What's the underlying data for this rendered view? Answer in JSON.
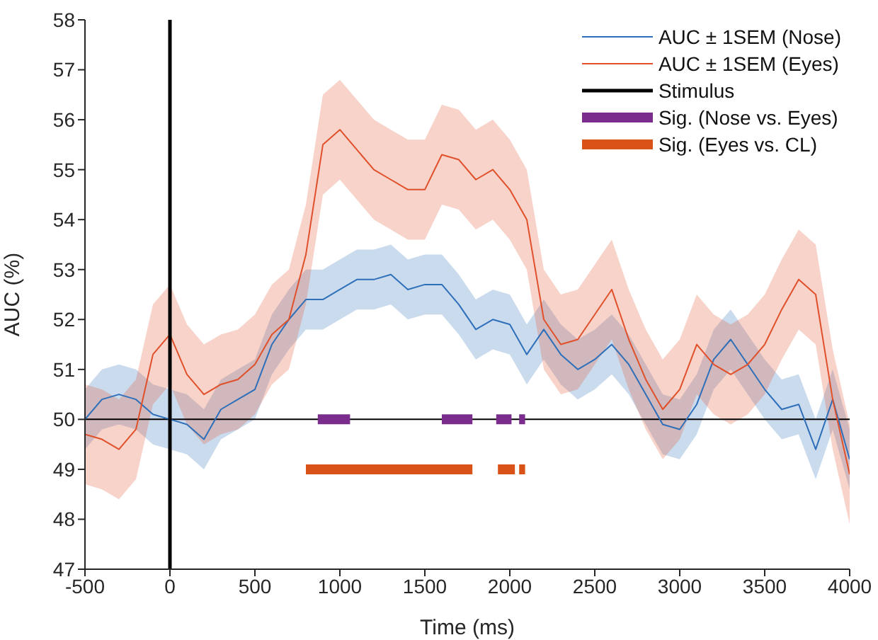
{
  "chart_data": {
    "type": "line",
    "xlabel": "Time (ms)",
    "ylabel": "AUC (%)",
    "xlim": [
      -500,
      4000
    ],
    "xticks": [
      -500,
      0,
      500,
      1000,
      1500,
      2000,
      2500,
      3000,
      3500,
      4000
    ],
    "ylim": [
      47,
      58
    ],
    "yticks": [
      47,
      48,
      49,
      50,
      51,
      52,
      53,
      54,
      55,
      56,
      57,
      58
    ],
    "grid": false,
    "legend": "top right",
    "x": [
      -500,
      -400,
      -300,
      -200,
      -100,
      0,
      100,
      200,
      300,
      400,
      500,
      600,
      700,
      800,
      900,
      1000,
      1100,
      1200,
      1300,
      1400,
      1500,
      1600,
      1700,
      1800,
      1900,
      2000,
      2100,
      2200,
      2300,
      2400,
      2500,
      2600,
      2700,
      2800,
      2900,
      3000,
      3100,
      3200,
      3300,
      3400,
      3500,
      3600,
      3700,
      3800,
      3900,
      4000
    ],
    "ref_lines": [
      {
        "axis": "y",
        "value": 50,
        "color": "#000000"
      }
    ],
    "series": [
      {
        "name": "AUC ± 1SEM (Nose)",
        "color": "#2e6fba",
        "values": [
          50.0,
          50.4,
          50.5,
          50.4,
          50.1,
          50.0,
          49.9,
          49.6,
          50.2,
          50.4,
          50.6,
          51.5,
          52.0,
          52.4,
          52.4,
          52.6,
          52.8,
          52.8,
          52.9,
          52.6,
          52.7,
          52.7,
          52.3,
          51.8,
          52.0,
          51.9,
          51.3,
          51.8,
          51.3,
          51.0,
          51.2,
          51.5,
          51.1,
          50.5,
          49.9,
          49.8,
          50.3,
          51.2,
          51.6,
          51.1,
          50.6,
          50.2,
          50.3,
          49.4,
          50.4,
          49.2
        ],
        "lower": [
          49.4,
          49.8,
          49.9,
          49.8,
          49.5,
          49.4,
          49.3,
          49.0,
          49.6,
          49.8,
          50.0,
          50.9,
          51.4,
          51.8,
          51.8,
          52.0,
          52.2,
          52.2,
          52.3,
          52.0,
          52.1,
          52.1,
          51.7,
          51.2,
          51.4,
          51.3,
          50.7,
          51.2,
          50.7,
          50.4,
          50.6,
          50.9,
          50.5,
          49.9,
          49.3,
          49.2,
          49.7,
          50.6,
          51.0,
          50.5,
          50.0,
          49.6,
          49.7,
          48.8,
          49.8,
          48.6
        ],
        "upper": [
          50.6,
          51.0,
          51.1,
          51.0,
          50.7,
          50.6,
          50.5,
          50.2,
          50.8,
          51.0,
          51.2,
          52.1,
          52.6,
          53.0,
          53.0,
          53.2,
          53.4,
          53.4,
          53.5,
          53.2,
          53.3,
          53.3,
          52.9,
          52.4,
          52.6,
          52.5,
          51.9,
          52.4,
          51.9,
          51.6,
          51.8,
          52.1,
          51.7,
          51.1,
          50.5,
          50.4,
          50.9,
          51.8,
          52.2,
          51.7,
          51.2,
          50.8,
          50.9,
          50.0,
          51.0,
          49.8
        ]
      },
      {
        "name": "AUC ± 1SEM (Eyes)",
        "color": "#e0502a",
        "values": [
          49.7,
          49.6,
          49.4,
          49.8,
          51.3,
          51.7,
          50.9,
          50.5,
          50.7,
          50.8,
          51.1,
          51.7,
          52.0,
          53.3,
          55.5,
          55.8,
          55.4,
          55.0,
          54.8,
          54.6,
          54.6,
          55.3,
          55.2,
          54.8,
          55.0,
          54.6,
          54.0,
          52.0,
          51.5,
          51.6,
          52.1,
          52.6,
          51.6,
          50.8,
          50.2,
          50.6,
          51.5,
          51.1,
          50.9,
          51.1,
          51.5,
          52.2,
          52.8,
          52.5,
          50.4,
          48.9
        ],
        "lower": [
          48.7,
          48.6,
          48.4,
          48.8,
          50.3,
          50.7,
          49.9,
          49.5,
          49.7,
          49.8,
          50.1,
          50.7,
          51.0,
          52.3,
          54.5,
          54.8,
          54.4,
          54.0,
          53.8,
          53.6,
          53.6,
          54.3,
          54.2,
          53.8,
          54.0,
          53.6,
          53.0,
          51.0,
          50.5,
          50.6,
          51.1,
          51.6,
          50.6,
          49.8,
          49.2,
          49.6,
          50.5,
          50.1,
          49.9,
          50.1,
          50.5,
          51.2,
          51.8,
          51.5,
          49.4,
          47.9
        ],
        "upper": [
          50.7,
          50.6,
          50.4,
          50.8,
          52.3,
          52.7,
          51.9,
          51.5,
          51.7,
          51.8,
          52.1,
          52.7,
          53.0,
          54.3,
          56.5,
          56.8,
          56.4,
          56.0,
          55.8,
          55.6,
          55.6,
          56.3,
          56.2,
          55.8,
          56.0,
          55.6,
          55.0,
          53.0,
          52.5,
          52.6,
          53.1,
          53.6,
          52.6,
          51.8,
          51.2,
          51.6,
          52.5,
          52.1,
          51.9,
          52.1,
          52.5,
          53.2,
          53.8,
          53.5,
          51.4,
          49.9
        ]
      },
      {
        "name": "Stimulus",
        "color": "#000000",
        "x": [
          0,
          0
        ],
        "values": [
          47,
          58
        ]
      },
      {
        "name": "Sig. (Nose vs. Eyes)",
        "color": "#7b2d8e",
        "x": [
          870,
          1060,
          1070,
          1600,
          1780,
          1790,
          1920,
          2010,
          2020,
          2055,
          2090
        ],
        "values": [
          50,
          50,
          null,
          50,
          50,
          null,
          50,
          50,
          null,
          50,
          50
        ]
      },
      {
        "name": "Sig. (Eyes vs. CL)",
        "color": "#d95319",
        "x": [
          800,
          1780,
          1790,
          1930,
          2030,
          2040,
          2055,
          2090
        ],
        "values": [
          49,
          49,
          null,
          49,
          49,
          null,
          49,
          49
        ]
      }
    ]
  }
}
